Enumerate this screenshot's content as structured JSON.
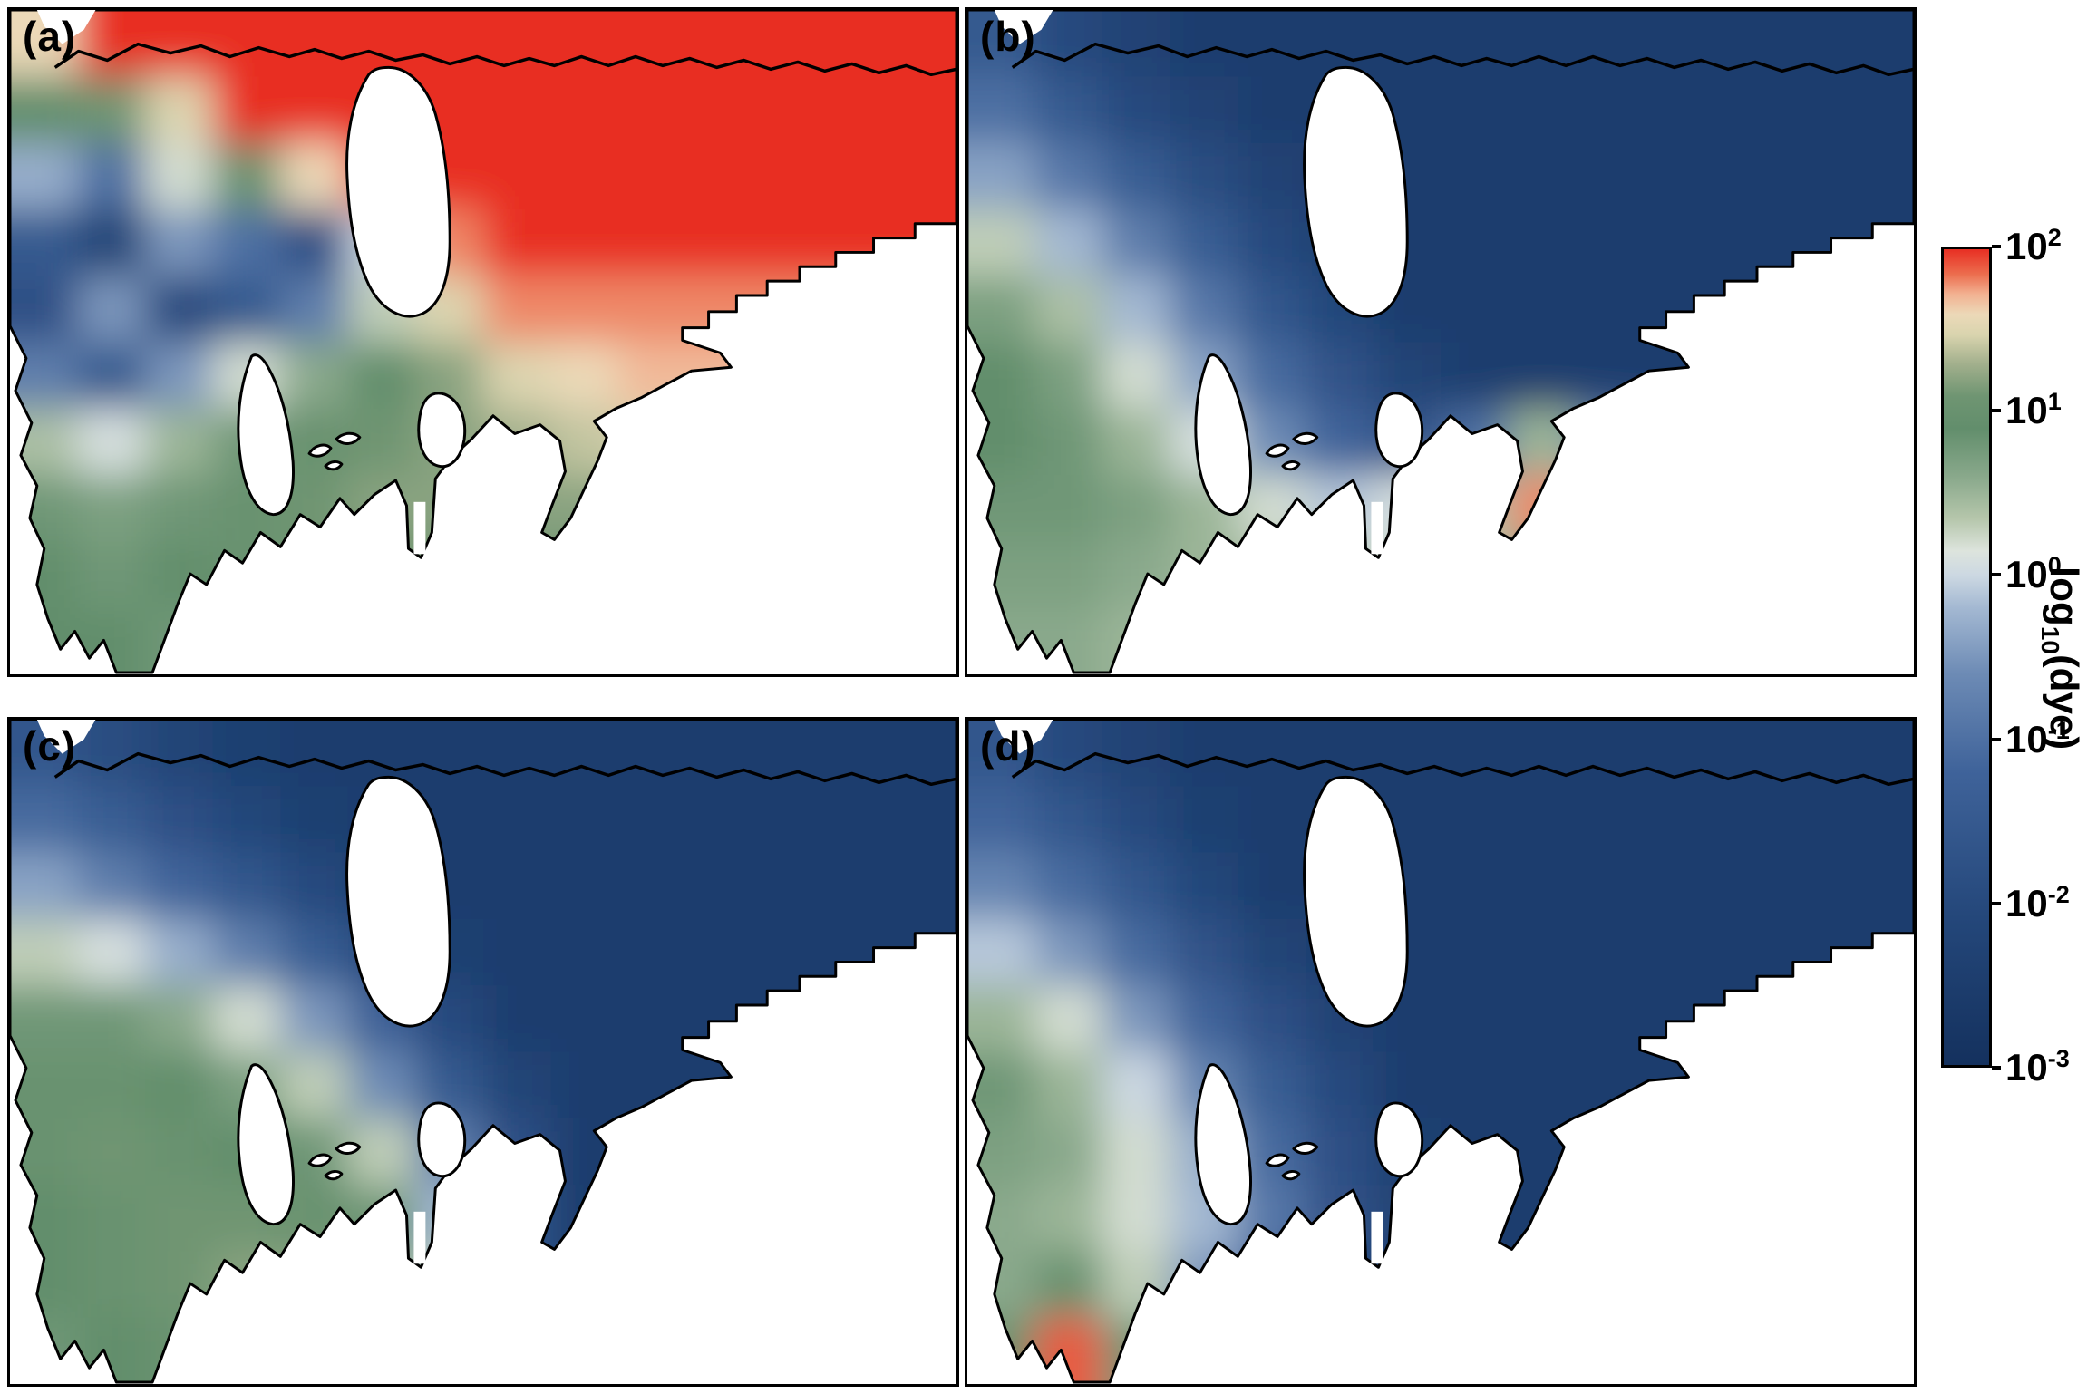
{
  "figure": {
    "panels": [
      {
        "id": "a",
        "label": "(a)"
      },
      {
        "id": "b",
        "label": "(b)"
      },
      {
        "id": "c",
        "label": "(c)"
      },
      {
        "id": "d",
        "label": "(d)"
      }
    ],
    "colorbar": {
      "label_main": "log",
      "label_sub": "10",
      "label_rest": "(dye)",
      "ticks": [
        {
          "base": "10",
          "exp": "2"
        },
        {
          "base": "10",
          "exp": "1"
        },
        {
          "base": "10",
          "exp": "0"
        },
        {
          "base": "10",
          "exp": "-1"
        },
        {
          "base": "10",
          "exp": "-2"
        },
        {
          "base": "10",
          "exp": "-3"
        }
      ]
    }
  },
  "chart_data": {
    "type": "heatmap",
    "title": "",
    "layout": "2x2 grid of spatial dye-concentration maps of the same coastal domain, sharing one vertical colorbar on the right",
    "field": "log10(dye)",
    "value_scale": "log10",
    "vmin_log10": -3,
    "vmax_log10": 2,
    "colorbar_range": [
      0.001,
      100
    ],
    "colorbar_ticks_log10": [
      2,
      1,
      0,
      -1,
      -2,
      -3
    ],
    "colormap_stops": [
      {
        "t": 0.0,
        "c": "#14315e"
      },
      {
        "t": 0.18,
        "c": "#24477a"
      },
      {
        "t": 0.36,
        "c": "#3f639a"
      },
      {
        "t": 0.48,
        "c": "#6d8bb5"
      },
      {
        "t": 0.56,
        "c": "#a3b8d2"
      },
      {
        "t": 0.6,
        "c": "#ccd8e2"
      },
      {
        "t": 0.63,
        "c": "#dde4dd"
      },
      {
        "t": 0.67,
        "c": "#b5c6ab"
      },
      {
        "t": 0.72,
        "c": "#8aa98c"
      },
      {
        "t": 0.78,
        "c": "#628e6c"
      },
      {
        "t": 0.82,
        "c": "#6f9572"
      },
      {
        "t": 0.86,
        "c": "#a3b08d"
      },
      {
        "t": 0.895,
        "c": "#d9d4ae"
      },
      {
        "t": 0.92,
        "c": "#ecd9b8"
      },
      {
        "t": 0.945,
        "c": "#f2b191"
      },
      {
        "t": 0.97,
        "c": "#ec6c4d"
      },
      {
        "t": 1.0,
        "c": "#e82f23"
      }
    ],
    "grid_cols": 14,
    "grid_rows": 10,
    "panels": [
      {
        "label": "(a)",
        "summary": "Dye near 10^2 (red) across the northern open water and the eastern channel; minimum 10^-3 to 10^-1 (dark blue) in the west-central basin with lighter-blue patches; 10^0.8 to 10^1.5 (green to cream/salmon) over the southern basins.",
        "log10_dye_grid": [
          [
            1.6,
            2,
            2,
            2,
            2,
            2,
            2,
            2,
            2,
            2,
            2,
            2,
            2,
            2
          ],
          [
            0.9,
            1.1,
            1.5,
            2,
            2,
            2,
            2,
            2,
            2,
            2,
            2,
            2,
            2,
            2
          ],
          [
            -0.3,
            -1.0,
            0.2,
            1.0,
            1.6,
            2,
            2,
            2,
            2,
            2,
            2,
            2,
            2,
            2
          ],
          [
            -1.5,
            -2.2,
            -0.5,
            -1.0,
            -1.8,
            0.0,
            1.8,
            2,
            2,
            2,
            2,
            2,
            2,
            2
          ],
          [
            -1.8,
            -0.5,
            -2.0,
            -1.5,
            -0.8,
            0.3,
            1.5,
            1.8,
            1.8,
            1.8,
            1.8,
            1.8,
            1.8,
            1.8
          ],
          [
            -0.8,
            -1.5,
            -0.5,
            0.2,
            0.6,
            0.9,
            1.2,
            1.5,
            1.6,
            1.7,
            1.7,
            1.7,
            1.7,
            1.7
          ],
          [
            0.4,
            0.1,
            0.5,
            0.8,
            1.0,
            1.1,
            1.2,
            1.3,
            1.4,
            1.5,
            1.5,
            1.5,
            1.5,
            1.5
          ],
          [
            0.8,
            0.7,
            0.8,
            1.0,
            1.1,
            1.2,
            1.2,
            1.2,
            1.2,
            1.2,
            1.2,
            1.2,
            1.2,
            1.2
          ],
          [
            0.9,
            0.8,
            0.9,
            1.0,
            1.1,
            1.1,
            1.0,
            1.0,
            1.0,
            1.0,
            1.0,
            1.0,
            1.0,
            1.0
          ],
          [
            0.9,
            0.9,
            0.8,
            0.9,
            1.0,
            1.0,
            0.9,
            0.9,
            0.9,
            0.9,
            0.9,
            0.9,
            0.9,
            0.9
          ]
        ]
      },
      {
        "label": "(b)",
        "summary": "Mostly 10^-3 to 10^-2 (dark blue); pale-blue transition through the middle; green band near 10^1 along the western and southern coasts; isolated maximum near 10^2 (red) at the southeastern inlet tip.",
        "log10_dye_grid": [
          [
            -1.5,
            -2.0,
            -2.3,
            -2.5,
            -2.5,
            -2.5,
            -2.5,
            -2.5,
            -2.5,
            -2.5,
            -2.5,
            -2.5,
            -2.5,
            -2.5
          ],
          [
            -1.0,
            -1.5,
            -2.0,
            -2.3,
            -2.5,
            -2.5,
            -2.5,
            -2.5,
            -2.5,
            -2.5,
            -2.5,
            -2.5,
            -2.5,
            -2.5
          ],
          [
            -0.4,
            -0.9,
            -1.4,
            -1.9,
            -2.3,
            -2.5,
            -2.5,
            -2.5,
            -2.5,
            -2.5,
            -2.5,
            -2.5,
            -2.5,
            -2.5
          ],
          [
            0.3,
            -0.2,
            -0.8,
            -1.4,
            -2.0,
            -2.4,
            -2.5,
            -2.5,
            -2.5,
            -2.5,
            -2.5,
            -2.5,
            -2.5,
            -2.5
          ],
          [
            0.7,
            0.4,
            -0.2,
            -0.9,
            -1.6,
            -2.1,
            -2.5,
            -2.5,
            -2.5,
            -2.5,
            -2.5,
            -2.5,
            -2.5,
            -2.5
          ],
          [
            0.9,
            0.7,
            0.2,
            -0.4,
            -1.1,
            -1.7,
            -2.2,
            -2.5,
            -2.5,
            -2.5,
            -2.5,
            -2.5,
            -2.5,
            -2.5
          ],
          [
            0.9,
            0.8,
            0.5,
            0.1,
            -0.6,
            -1.2,
            -1.7,
            -1.0,
            0.5,
            -0.8,
            -2.0,
            -2.5,
            -2.5,
            -2.5
          ],
          [
            0.8,
            0.8,
            0.7,
            0.5,
            0.2,
            -0.1,
            0.1,
            0.4,
            1.8,
            0.5,
            -1.5,
            -2.5,
            -2.5,
            -2.5
          ],
          [
            0.7,
            0.7,
            0.6,
            0.5,
            0.4,
            0.3,
            0.2,
            0.3,
            0.8,
            0.2,
            -1.8,
            -2.5,
            -2.5,
            -2.5
          ],
          [
            0.6,
            0.6,
            0.5,
            0.4,
            0.3,
            0.2,
            0.2,
            0.2,
            0.3,
            0.0,
            -2.0,
            -2.5,
            -2.5,
            -2.5
          ]
        ]
      },
      {
        "label": "(c)",
        "summary": "Green near 10^1 over the western half with cream patches near 10^1.3 toward the south-center; dark blue near 10^-3 over the north and the entire eastern half.",
        "log10_dye_grid": [
          [
            -1.6,
            -1.9,
            -2.2,
            -2.4,
            -2.5,
            -2.5,
            -2.5,
            -2.5,
            -2.5,
            -2.5,
            -2.5,
            -2.5,
            -2.5,
            -2.5
          ],
          [
            -1.1,
            -1.4,
            -1.8,
            -2.1,
            -2.4,
            -2.5,
            -2.5,
            -2.5,
            -2.5,
            -2.5,
            -2.5,
            -2.5,
            -2.5,
            -2.5
          ],
          [
            -0.4,
            -0.8,
            -1.2,
            -1.6,
            -2.0,
            -2.4,
            -2.5,
            -2.5,
            -2.5,
            -2.5,
            -2.5,
            -2.5,
            -2.5,
            -2.5
          ],
          [
            0.3,
            0.1,
            -0.3,
            -0.8,
            -1.4,
            -2.0,
            -2.4,
            -2.5,
            -2.5,
            -2.5,
            -2.5,
            -2.5,
            -2.5,
            -2.5
          ],
          [
            0.8,
            0.8,
            0.6,
            0.2,
            -0.5,
            -1.3,
            -2.0,
            -2.5,
            -2.5,
            -2.5,
            -2.5,
            -2.5,
            -2.5,
            -2.5
          ],
          [
            1.0,
            1.0,
            0.9,
            0.7,
            0.3,
            -0.6,
            -1.5,
            -2.2,
            -2.5,
            -2.5,
            -2.5,
            -2.5,
            -2.5,
            -2.5
          ],
          [
            1.0,
            1.1,
            1.0,
            0.9,
            0.8,
            0.3,
            -0.8,
            -1.8,
            -2.5,
            -2.5,
            -2.5,
            -2.5,
            -2.5,
            -2.5
          ],
          [
            0.9,
            1.0,
            1.1,
            1.1,
            1.0,
            0.8,
            -0.2,
            -1.6,
            -2.5,
            -2.5,
            -2.5,
            -2.5,
            -2.5,
            -2.5
          ],
          [
            0.9,
            1.0,
            1.1,
            1.2,
            1.2,
            1.0,
            0.2,
            -1.6,
            -2.5,
            -2.5,
            -2.5,
            -2.5,
            -2.5,
            -2.5
          ],
          [
            0.8,
            0.9,
            1.0,
            1.2,
            1.3,
            1.1,
            0.3,
            -1.6,
            -2.5,
            -2.5,
            -2.5,
            -2.5,
            -2.5,
            -2.5
          ]
        ]
      },
      {
        "label": "(d)",
        "summary": "Mostly 10^-3 (dark blue); green near 10^0.7 restricted to the west; pale-blue transition band; local maximum near 10^2 (red/salmon) at the southwestern tip of the domain.",
        "log10_dye_grid": [
          [
            -1.6,
            -2.0,
            -2.3,
            -2.5,
            -2.5,
            -2.5,
            -2.5,
            -2.5,
            -2.5,
            -2.5,
            -2.5,
            -2.5,
            -2.5,
            -2.5
          ],
          [
            -1.2,
            -1.6,
            -2.0,
            -2.4,
            -2.5,
            -2.5,
            -2.5,
            -2.5,
            -2.5,
            -2.5,
            -2.5,
            -2.5,
            -2.5,
            -2.5
          ],
          [
            -0.7,
            -1.1,
            -1.6,
            -2.1,
            -2.5,
            -2.5,
            -2.5,
            -2.5,
            -2.5,
            -2.5,
            -2.5,
            -2.5,
            -2.5,
            -2.5
          ],
          [
            -0.1,
            -0.5,
            -1.1,
            -1.7,
            -2.2,
            -2.5,
            -2.5,
            -2.5,
            -2.5,
            -2.5,
            -2.5,
            -2.5,
            -2.5,
            -2.5
          ],
          [
            0.5,
            0.2,
            -0.5,
            -1.2,
            -1.8,
            -2.3,
            -2.5,
            -2.5,
            -2.5,
            -2.5,
            -2.5,
            -2.5,
            -2.5,
            -2.5
          ],
          [
            0.8,
            0.5,
            0.0,
            -0.7,
            -1.4,
            -2.0,
            -2.5,
            -2.5,
            -2.5,
            -2.5,
            -2.5,
            -2.5,
            -2.5,
            -2.5
          ],
          [
            0.7,
            0.6,
            0.2,
            -0.3,
            -1.1,
            -1.8,
            -2.4,
            -2.5,
            -2.5,
            -2.5,
            -2.5,
            -2.5,
            -2.5,
            -2.5
          ],
          [
            0.6,
            0.5,
            0.2,
            -0.2,
            -0.9,
            -1.7,
            -2.3,
            -2.5,
            -2.5,
            -2.5,
            -2.5,
            -2.5,
            -2.5,
            -2.5
          ],
          [
            0.6,
            1.0,
            0.3,
            -0.5,
            -1.3,
            -2.0,
            -2.5,
            -2.5,
            -2.5,
            -2.5,
            -2.5,
            -2.5,
            -2.5,
            -2.5
          ],
          [
            1.0,
            1.9,
            0.8,
            -0.6,
            -1.5,
            -2.2,
            -2.5,
            -2.5,
            -2.5,
            -2.5,
            -2.5,
            -2.5,
            -2.5,
            -2.5
          ]
        ]
      }
    ]
  }
}
